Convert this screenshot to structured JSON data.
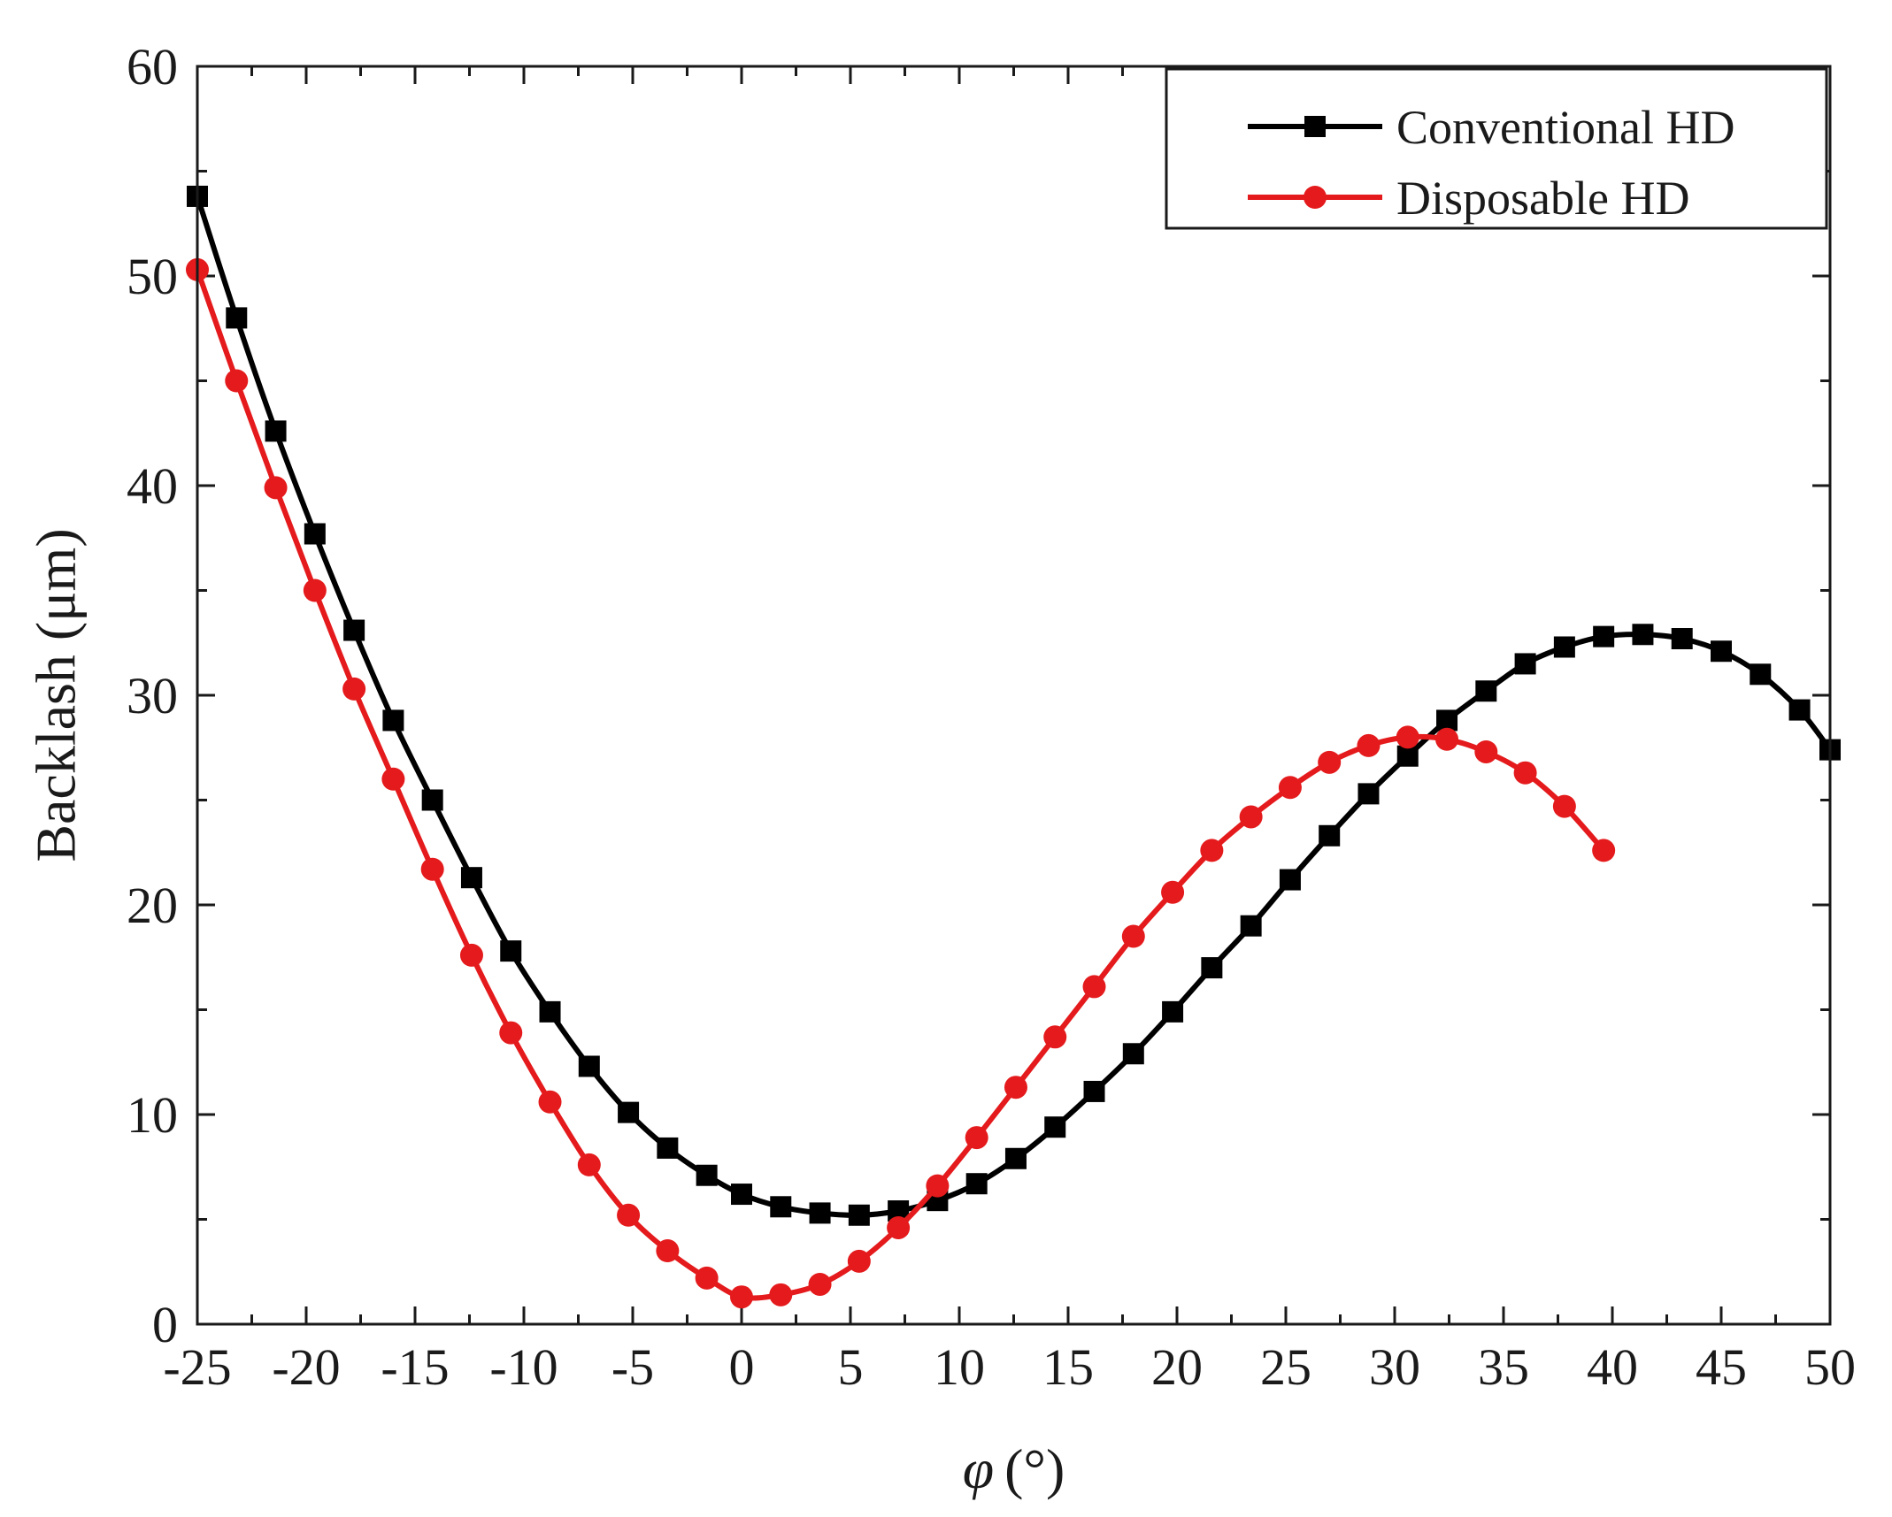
{
  "chart_data": {
    "type": "line",
    "title": "",
    "xlabel_symbol": "φ",
    "xlabel_unit": "(°)",
    "ylabel": "Backlash (μm)",
    "xlim": [
      -25,
      50
    ],
    "ylim": [
      0,
      60
    ],
    "x_ticks": [
      "-25",
      "-20",
      "-15",
      "-10",
      "-5",
      "0",
      "5",
      "10",
      "15",
      "20",
      "25",
      "30",
      "35",
      "40",
      "45",
      "50"
    ],
    "y_ticks": [
      "0",
      "10",
      "20",
      "30",
      "40",
      "50",
      "60"
    ],
    "x_minor_step": 2.5,
    "y_minor_step": 5,
    "grid": false,
    "legend_position": "top-right",
    "series": [
      {
        "name": "Conventional HD",
        "color": "#000000",
        "marker": "square",
        "x": [
          -25,
          -23.2,
          -21.4,
          -19.6,
          -17.8,
          -16,
          -14.2,
          -12.4,
          -10.6,
          -8.8,
          -7,
          -5.2,
          -3.4,
          -1.6,
          0,
          1.8,
          3.6,
          5.4,
          7.2,
          9,
          10.8,
          12.6,
          14.4,
          16.2,
          18,
          19.8,
          21.6,
          23.4,
          25.2,
          27,
          28.8,
          30.6,
          32.4,
          34.2,
          36,
          37.8,
          39.6,
          41.4,
          43.2,
          45,
          46.8,
          48.6,
          50
        ],
        "y": [
          53.8,
          48.0,
          42.6,
          37.7,
          33.1,
          28.8,
          25.0,
          21.3,
          17.8,
          14.9,
          12.3,
          10.1,
          8.4,
          7.1,
          6.2,
          5.6,
          5.3,
          5.2,
          5.4,
          5.9,
          6.7,
          7.9,
          9.4,
          11.1,
          12.9,
          14.9,
          17.0,
          19.0,
          21.2,
          23.3,
          25.3,
          27.1,
          28.8,
          30.2,
          31.5,
          32.3,
          32.8,
          32.9,
          32.7,
          32.1,
          31.0,
          29.3,
          27.4
        ]
      },
      {
        "name": "Disposable HD",
        "color": "#e41a1c",
        "marker": "circle",
        "x": [
          -25,
          -23.2,
          -21.4,
          -19.6,
          -17.8,
          -16,
          -14.2,
          -12.4,
          -10.6,
          -8.8,
          -7,
          -5.2,
          -3.4,
          -1.6,
          0,
          1.8,
          3.6,
          5.4,
          7.2,
          9,
          10.8,
          12.6,
          14.4,
          16.2,
          18,
          19.8,
          21.6,
          23.4,
          25.2,
          27,
          28.8,
          30.6,
          32.4,
          34.2,
          36,
          37.8,
          39.6
        ],
        "y": [
          50.3,
          45.0,
          39.9,
          35.0,
          30.3,
          26.0,
          21.7,
          17.6,
          13.9,
          10.6,
          7.6,
          5.2,
          3.5,
          2.2,
          1.3,
          1.4,
          1.9,
          3.0,
          4.6,
          6.6,
          8.9,
          11.3,
          13.7,
          16.1,
          18.5,
          20.6,
          22.6,
          24.2,
          25.6,
          26.8,
          27.6,
          28.0,
          27.9,
          27.3,
          26.3,
          24.7,
          22.6
        ]
      }
    ]
  }
}
